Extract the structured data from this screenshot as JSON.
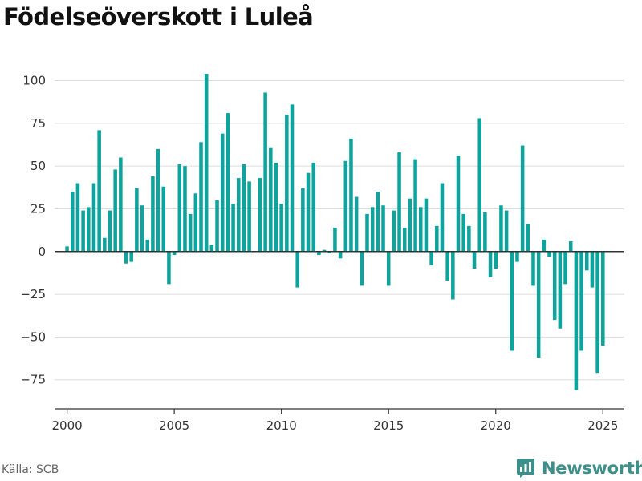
{
  "page": {
    "title": "Födelseöverskott i Luleå",
    "source": "Källa: SCB",
    "brand_name": "Newsworthy",
    "brand_icon": "bar-chart-logo-icon"
  },
  "colors": {
    "bar": "#0fa39d",
    "grid": "#dddddd",
    "zero_line": "#333333",
    "axis": "#333333",
    "brand": "#3d8f8a"
  },
  "chart_data": {
    "type": "bar",
    "title": "Födelseöverskott i Luleå",
    "xlabel": "",
    "ylabel": "",
    "grid": true,
    "ylim": [
      -92,
      104
    ],
    "xlim": [
      "1999-06",
      "2026-01"
    ],
    "yticks": [
      100,
      75,
      50,
      25,
      0,
      -25,
      -50,
      -75
    ],
    "ytick_labels": [
      "100",
      "75",
      "50",
      "25",
      "0",
      "−25",
      "−50",
      "−75"
    ],
    "xticks": [
      2000,
      2005,
      2010,
      2015,
      2020,
      2025
    ],
    "xtick_labels": [
      "2000",
      "2005",
      "2010",
      "2015",
      "2020",
      "2025"
    ],
    "periods": [
      "2000 Q1",
      "2000 Q2",
      "2000 Q3",
      "2000 Q4",
      "2001 Q1",
      "2001 Q2",
      "2001 Q3",
      "2001 Q4",
      "2002 Q1",
      "2002 Q2",
      "2002 Q3",
      "2002 Q4",
      "2003 Q1",
      "2003 Q2",
      "2003 Q3",
      "2003 Q4",
      "2004 Q1",
      "2004 Q2",
      "2004 Q3",
      "2004 Q4",
      "2005 Q1",
      "2005 Q2",
      "2005 Q3",
      "2005 Q4",
      "2006 Q1",
      "2006 Q2",
      "2006 Q3",
      "2006 Q4",
      "2007 Q1",
      "2007 Q2",
      "2007 Q3",
      "2007 Q4",
      "2008 Q1",
      "2008 Q2",
      "2008 Q3",
      "2008 Q4",
      "2009 Q1",
      "2009 Q2",
      "2009 Q3",
      "2009 Q4",
      "2010 Q1",
      "2010 Q2",
      "2010 Q3",
      "2010 Q4",
      "2011 Q1",
      "2011 Q2",
      "2011 Q3",
      "2011 Q4",
      "2012 Q1",
      "2012 Q2",
      "2012 Q3",
      "2012 Q4",
      "2013 Q1",
      "2013 Q2",
      "2013 Q3",
      "2013 Q4",
      "2014 Q1",
      "2014 Q2",
      "2014 Q3",
      "2014 Q4",
      "2015 Q1",
      "2015 Q2",
      "2015 Q3",
      "2015 Q4",
      "2016 Q1",
      "2016 Q2",
      "2016 Q3",
      "2016 Q4",
      "2017 Q1",
      "2017 Q2",
      "2017 Q3",
      "2017 Q4",
      "2018 Q1",
      "2018 Q2",
      "2018 Q3",
      "2018 Q4",
      "2019 Q1",
      "2019 Q2",
      "2019 Q3",
      "2019 Q4",
      "2020 Q1",
      "2020 Q2",
      "2020 Q3",
      "2020 Q4",
      "2021 Q1",
      "2021 Q2",
      "2021 Q3",
      "2021 Q4",
      "2022 Q1",
      "2022 Q2",
      "2022 Q3",
      "2022 Q4",
      "2023 Q1",
      "2023 Q2",
      "2023 Q3",
      "2023 Q4",
      "2024 Q1",
      "2024 Q2",
      "2024 Q3",
      "2024 Q4",
      "2025 Q1"
    ],
    "values": [
      3,
      35,
      40,
      24,
      26,
      40,
      71,
      8,
      24,
      48,
      55,
      -7,
      -6,
      37,
      27,
      7,
      44,
      60,
      38,
      -19,
      -2,
      51,
      50,
      22,
      34,
      64,
      104,
      4,
      30,
      69,
      81,
      28,
      43,
      51,
      41,
      0,
      43,
      93,
      61,
      52,
      28,
      80,
      86,
      -21,
      37,
      46,
      52,
      -2,
      1,
      -1,
      14,
      -4,
      53,
      66,
      32,
      -20,
      22,
      26,
      35,
      27,
      -20,
      24,
      58,
      14,
      31,
      54,
      26,
      31,
      -8,
      15,
      40,
      -17,
      -28,
      56,
      22,
      15,
      -10,
      78,
      23,
      -15,
      -10,
      27,
      24,
      -58,
      -6,
      62,
      16,
      -20,
      -62,
      7,
      -3,
      -40,
      -45,
      -19,
      6,
      -81,
      -58,
      -11,
      -21,
      -71,
      -55
    ]
  }
}
